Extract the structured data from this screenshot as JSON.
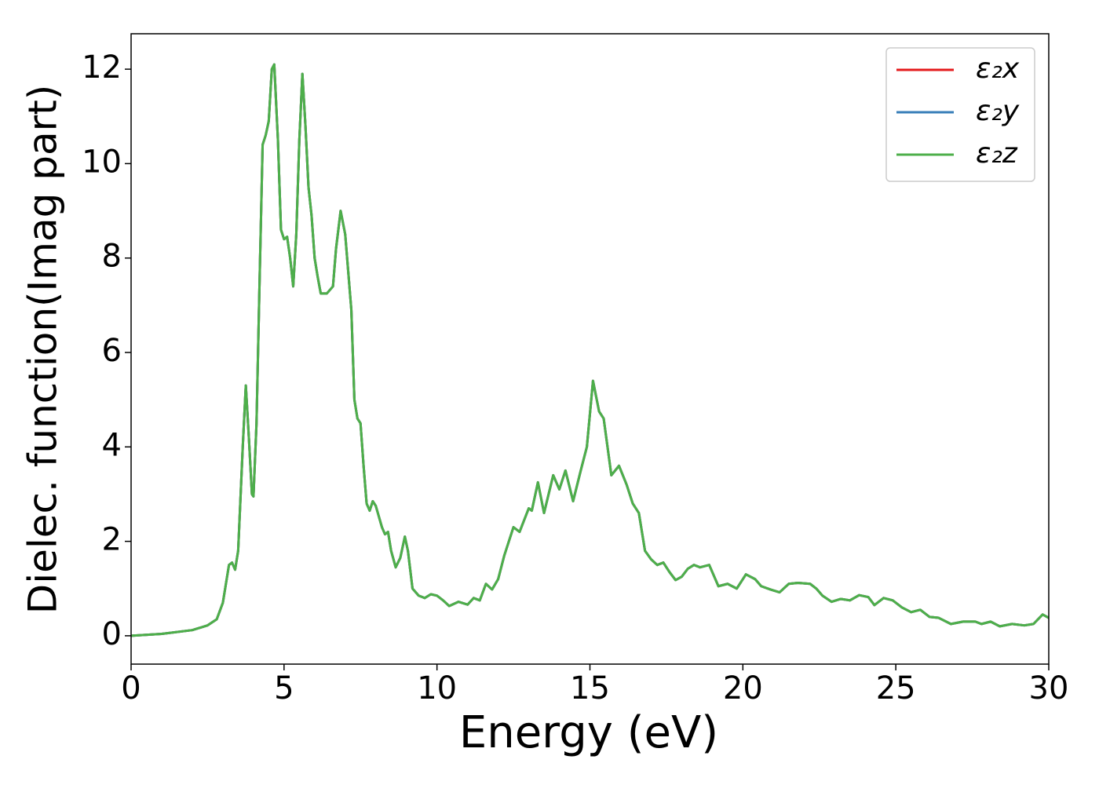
{
  "chart_data": {
    "type": "line",
    "xlabel": "Energy (eV)",
    "ylabel": "Dielec. function(Imag part)",
    "xlim": [
      0,
      30
    ],
    "xticks": [
      0,
      5,
      10,
      15,
      20,
      25,
      30
    ],
    "ylim": [
      -0.6,
      12.75
    ],
    "yticks": [
      0,
      2,
      4,
      6,
      8,
      10,
      12
    ],
    "legend": "upper right",
    "x": [
      0,
      1,
      2,
      2.5,
      2.8,
      3.0,
      3.2,
      3.3,
      3.4,
      3.5,
      3.65,
      3.75,
      3.85,
      3.95,
      4.0,
      4.1,
      4.2,
      4.3,
      4.4,
      4.5,
      4.6,
      4.68,
      4.8,
      4.9,
      5.0,
      5.1,
      5.2,
      5.3,
      5.4,
      5.5,
      5.6,
      5.7,
      5.8,
      5.9,
      6.0,
      6.1,
      6.2,
      6.4,
      6.6,
      6.7,
      6.85,
      7.0,
      7.2,
      7.3,
      7.4,
      7.5,
      7.6,
      7.7,
      7.8,
      7.9,
      8.0,
      8.2,
      8.3,
      8.4,
      8.5,
      8.65,
      8.8,
      8.95,
      9.05,
      9.2,
      9.4,
      9.6,
      9.8,
      10.0,
      10.2,
      10.4,
      10.7,
      11.0,
      11.2,
      11.4,
      11.6,
      11.8,
      12.0,
      12.2,
      12.5,
      12.7,
      13.0,
      13.1,
      13.3,
      13.5,
      13.8,
      14.0,
      14.2,
      14.45,
      14.7,
      14.9,
      15.1,
      15.3,
      15.45,
      15.7,
      15.95,
      16.2,
      16.4,
      16.6,
      16.8,
      17.0,
      17.2,
      17.4,
      17.6,
      17.8,
      18.0,
      18.2,
      18.4,
      18.6,
      18.9,
      19.2,
      19.5,
      19.8,
      20.1,
      20.4,
      20.6,
      20.9,
      21.2,
      21.5,
      21.8,
      22.2,
      22.4,
      22.6,
      22.9,
      23.2,
      23.5,
      23.8,
      24.1,
      24.3,
      24.6,
      24.9,
      25.2,
      25.5,
      25.8,
      26.1,
      26.4,
      26.8,
      27.2,
      27.6,
      27.8,
      28.1,
      28.4,
      28.8,
      29.2,
      29.5,
      29.8,
      30.0
    ],
    "series": [
      {
        "name": "ε₂x",
        "color": "#e41a1c",
        "values": [
          0.0,
          0.04,
          0.12,
          0.22,
          0.35,
          0.7,
          1.5,
          1.55,
          1.4,
          1.8,
          4.0,
          5.3,
          4.2,
          3.0,
          2.95,
          4.5,
          7.5,
          10.4,
          10.6,
          10.9,
          12.0,
          12.1,
          10.5,
          8.6,
          8.4,
          8.45,
          8.0,
          7.4,
          8.5,
          10.5,
          11.9,
          10.8,
          9.5,
          8.9,
          8.0,
          7.6,
          7.25,
          7.25,
          7.4,
          8.2,
          9.0,
          8.5,
          6.9,
          5.0,
          4.6,
          4.5,
          3.6,
          2.8,
          2.65,
          2.85,
          2.75,
          2.3,
          2.15,
          2.2,
          1.8,
          1.45,
          1.65,
          2.1,
          1.8,
          1.0,
          0.85,
          0.8,
          0.88,
          0.85,
          0.75,
          0.63,
          0.72,
          0.66,
          0.8,
          0.75,
          1.1,
          0.98,
          1.2,
          1.7,
          2.3,
          2.2,
          2.7,
          2.65,
          3.25,
          2.6,
          3.4,
          3.1,
          3.5,
          2.85,
          3.5,
          4.0,
          5.4,
          4.75,
          4.6,
          3.4,
          3.6,
          3.2,
          2.8,
          2.6,
          1.8,
          1.62,
          1.5,
          1.55,
          1.35,
          1.18,
          1.25,
          1.42,
          1.5,
          1.45,
          1.5,
          1.05,
          1.1,
          1.0,
          1.3,
          1.2,
          1.05,
          0.98,
          0.92,
          1.1,
          1.12,
          1.1,
          1.0,
          0.85,
          0.72,
          0.78,
          0.75,
          0.86,
          0.82,
          0.65,
          0.8,
          0.75,
          0.6,
          0.5,
          0.55,
          0.4,
          0.38,
          0.25,
          0.3,
          0.3,
          0.25,
          0.3,
          0.2,
          0.25,
          0.22,
          0.25,
          0.45,
          0.38
        ]
      },
      {
        "name": "ε₂y",
        "color": "#377eb8",
        "values": [
          0.0,
          0.04,
          0.12,
          0.22,
          0.35,
          0.7,
          1.5,
          1.55,
          1.4,
          1.8,
          4.0,
          5.3,
          4.2,
          3.0,
          2.95,
          4.5,
          7.5,
          10.4,
          10.6,
          10.9,
          12.0,
          12.1,
          10.5,
          8.6,
          8.4,
          8.45,
          8.0,
          7.4,
          8.5,
          10.5,
          11.9,
          10.8,
          9.5,
          8.9,
          8.0,
          7.6,
          7.25,
          7.25,
          7.4,
          8.2,
          9.0,
          8.5,
          6.9,
          5.0,
          4.6,
          4.5,
          3.6,
          2.8,
          2.65,
          2.85,
          2.75,
          2.3,
          2.15,
          2.2,
          1.8,
          1.45,
          1.65,
          2.1,
          1.8,
          1.0,
          0.85,
          0.8,
          0.88,
          0.85,
          0.75,
          0.63,
          0.72,
          0.66,
          0.8,
          0.75,
          1.1,
          0.98,
          1.2,
          1.7,
          2.3,
          2.2,
          2.7,
          2.65,
          3.25,
          2.6,
          3.4,
          3.1,
          3.5,
          2.85,
          3.5,
          4.0,
          5.4,
          4.75,
          4.6,
          3.4,
          3.6,
          3.2,
          2.8,
          2.6,
          1.8,
          1.62,
          1.5,
          1.55,
          1.35,
          1.18,
          1.25,
          1.42,
          1.5,
          1.45,
          1.5,
          1.05,
          1.1,
          1.0,
          1.3,
          1.2,
          1.05,
          0.98,
          0.92,
          1.1,
          1.12,
          1.1,
          1.0,
          0.85,
          0.72,
          0.78,
          0.75,
          0.86,
          0.82,
          0.65,
          0.8,
          0.75,
          0.6,
          0.5,
          0.55,
          0.4,
          0.38,
          0.25,
          0.3,
          0.3,
          0.25,
          0.3,
          0.2,
          0.25,
          0.22,
          0.25,
          0.45,
          0.38
        ]
      },
      {
        "name": "ε₂z",
        "color": "#4daf4a",
        "values": [
          0.0,
          0.04,
          0.12,
          0.22,
          0.35,
          0.7,
          1.5,
          1.55,
          1.4,
          1.8,
          4.0,
          5.3,
          4.2,
          3.0,
          2.95,
          4.5,
          7.5,
          10.4,
          10.6,
          10.9,
          12.0,
          12.1,
          10.5,
          8.6,
          8.4,
          8.45,
          8.0,
          7.4,
          8.5,
          10.5,
          11.9,
          10.8,
          9.5,
          8.9,
          8.0,
          7.6,
          7.25,
          7.25,
          7.4,
          8.2,
          9.0,
          8.5,
          6.9,
          5.0,
          4.6,
          4.5,
          3.6,
          2.8,
          2.65,
          2.85,
          2.75,
          2.3,
          2.15,
          2.2,
          1.8,
          1.45,
          1.65,
          2.1,
          1.8,
          1.0,
          0.85,
          0.8,
          0.88,
          0.85,
          0.75,
          0.63,
          0.72,
          0.66,
          0.8,
          0.75,
          1.1,
          0.98,
          1.2,
          1.7,
          2.3,
          2.2,
          2.7,
          2.65,
          3.25,
          2.6,
          3.4,
          3.1,
          3.5,
          2.85,
          3.5,
          4.0,
          5.4,
          4.75,
          4.6,
          3.4,
          3.6,
          3.2,
          2.8,
          2.6,
          1.8,
          1.62,
          1.5,
          1.55,
          1.35,
          1.18,
          1.25,
          1.42,
          1.5,
          1.45,
          1.5,
          1.05,
          1.1,
          1.0,
          1.3,
          1.2,
          1.05,
          0.98,
          0.92,
          1.1,
          1.12,
          1.1,
          1.0,
          0.85,
          0.72,
          0.78,
          0.75,
          0.86,
          0.82,
          0.65,
          0.8,
          0.75,
          0.6,
          0.5,
          0.55,
          0.4,
          0.38,
          0.25,
          0.3,
          0.3,
          0.25,
          0.3,
          0.2,
          0.25,
          0.22,
          0.25,
          0.45,
          0.38
        ]
      }
    ]
  }
}
